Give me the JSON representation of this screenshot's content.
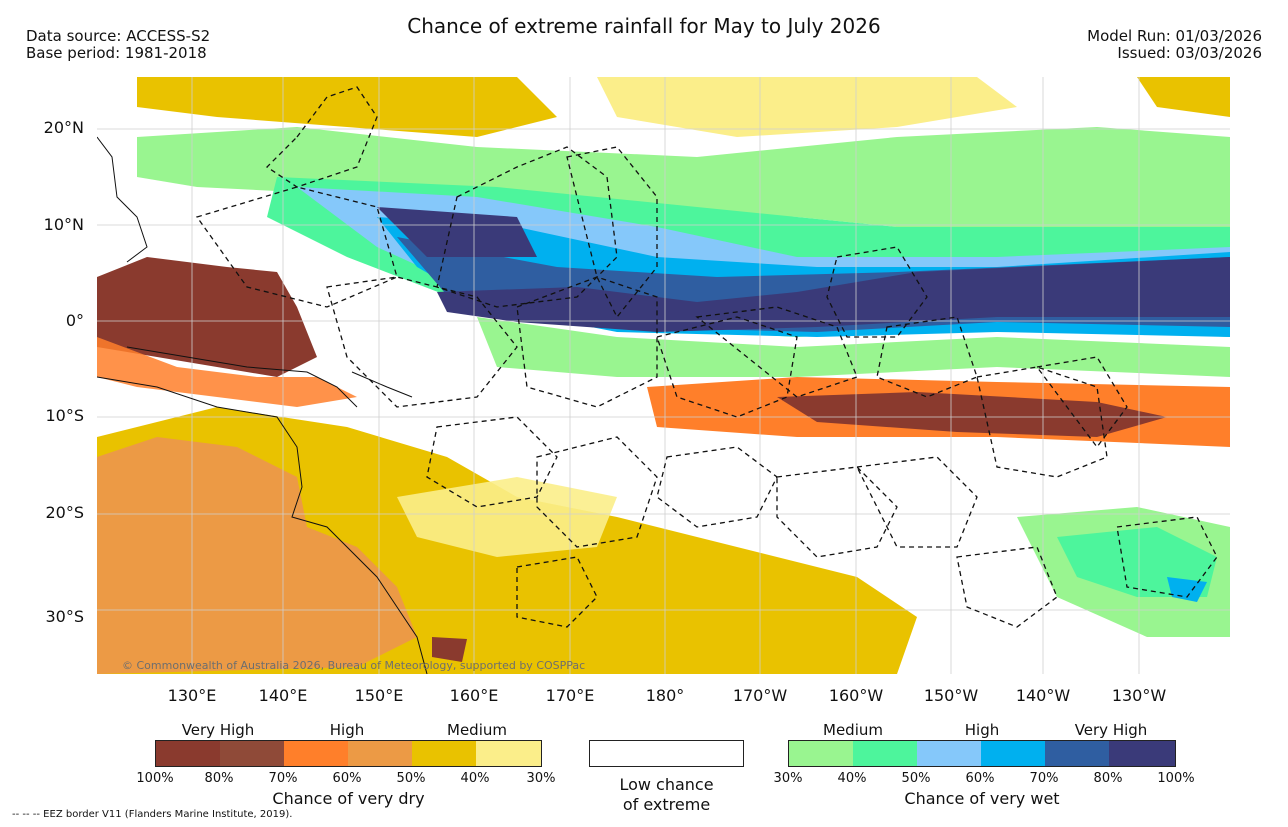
{
  "title": "Chance of extreme rainfall for May to July 2026",
  "header": {
    "data_source": "Data source: ACCESS-S2",
    "base_period": "Base period: 1981-2018",
    "model_run": "Model Run: 01/03/2026",
    "issued": "Issued: 03/03/2026"
  },
  "map": {
    "latitude_labels": [
      "20°N",
      "10°N",
      "0°",
      "10°S",
      "20°S",
      "30°S"
    ],
    "longitude_labels": [
      "130°E",
      "140°E",
      "150°E",
      "160°E",
      "170°E",
      "180°",
      "170°W",
      "160°W",
      "150°W",
      "140°W",
      "130°W"
    ],
    "copyright": "© Commonwealth of Australia 2026, Bureau of Meteorology, supported by COSPPac"
  },
  "legend_dry": {
    "levels": [
      "Very High",
      "High",
      "Medium"
    ],
    "ticks": [
      "100%",
      "80%",
      "70%",
      "60%",
      "50%",
      "40%",
      "30%"
    ],
    "colors": [
      "#8a3a2e",
      "#8f4a38",
      "#ff7f2a",
      "#ec9a45",
      "#e9c200",
      "#fbee8a"
    ],
    "title": "Chance of very dry"
  },
  "legend_low": {
    "line1": "Low chance",
    "line2": "of extreme"
  },
  "legend_wet": {
    "levels": [
      "Medium",
      "High",
      "Very High"
    ],
    "ticks": [
      "30%",
      "40%",
      "50%",
      "60%",
      "70%",
      "80%",
      "100%"
    ],
    "colors": [
      "#99f590",
      "#4df59c",
      "#85c8fa",
      "#00b0ef",
      "#2f5ea1",
      "#3a3a79"
    ],
    "title": "Chance of very wet"
  },
  "footnote": "-- -- -- EEZ border V11 (Flanders Marine Institute, 2019)."
}
